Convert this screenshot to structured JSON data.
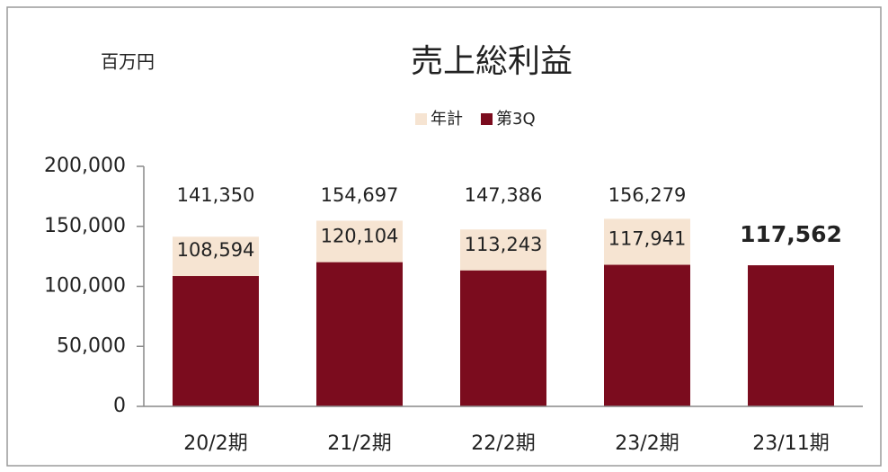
{
  "chart_data": {
    "type": "bar",
    "title": "売上総利益",
    "unit_label": "百万円",
    "categories": [
      "20/2期",
      "21/2期",
      "22/2期",
      "23/2期",
      "23/11期"
    ],
    "series": [
      {
        "name": "年計",
        "color": "#f6e4d2",
        "values": [
          141350,
          154697,
          147386,
          156279,
          null
        ],
        "value_labels": [
          "141,350",
          "154,697",
          "147,386",
          "156,279",
          null
        ]
      },
      {
        "name": "第3Q",
        "color": "#7b0c1e",
        "values": [
          108594,
          120104,
          113243,
          117941,
          117562
        ],
        "value_labels": [
          "108,594",
          "120,104",
          "113,243",
          "117,941",
          "117,562"
        ]
      }
    ],
    "ylim": [
      0,
      200000
    ],
    "yticks": [
      0,
      {
        "value": 50000,
        "label": "50,000"
      },
      {
        "value": 100000,
        "label": "100,000"
      },
      {
        "value": 150000,
        "label": "150,000"
      },
      {
        "value": 200000,
        "label": "200,000"
      }
    ],
    "grid": false,
    "legend": "top"
  }
}
